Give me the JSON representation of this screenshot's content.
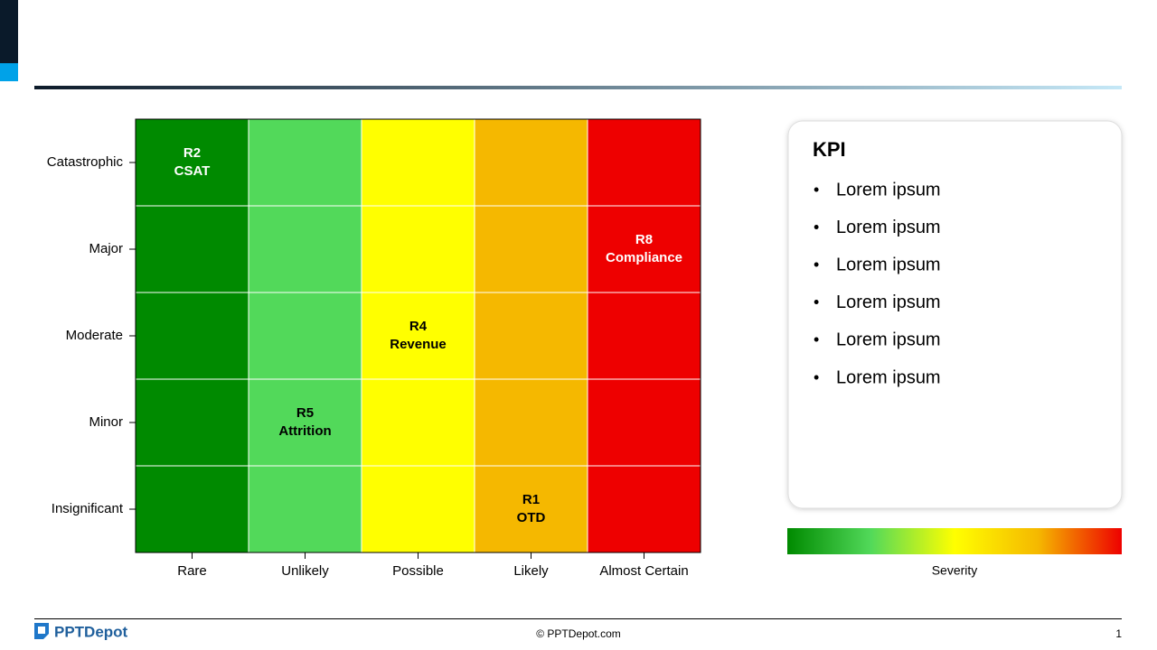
{
  "chart_data": {
    "type": "heatmap",
    "x_categories": [
      "Rare",
      "Unlikely",
      "Possible",
      "Likely",
      "Almost Certain"
    ],
    "y_categories": [
      "Catastrophic",
      "Major",
      "Moderate",
      "Minor",
      "Insignificant"
    ],
    "column_colors": [
      "#008a00",
      "#52d95a",
      "#ffff00",
      "#f5b800",
      "#ee0000"
    ],
    "label_colors": [
      "#ffffff",
      "#000000",
      "#000000",
      "#000000",
      "#ffffff"
    ],
    "risks": [
      {
        "id": "R2",
        "name": "CSAT",
        "x": "Rare",
        "y": "Catastrophic"
      },
      {
        "id": "R8",
        "name": "Compliance",
        "x": "Almost Certain",
        "y": "Major"
      },
      {
        "id": "R4",
        "name": "Revenue",
        "x": "Possible",
        "y": "Moderate"
      },
      {
        "id": "R5",
        "name": "Attrition",
        "x": "Unlikely",
        "y": "Minor"
      },
      {
        "id": "R1",
        "name": "OTD",
        "x": "Likely",
        "y": "Insignificant"
      }
    ],
    "colorbar": {
      "label": "Severity",
      "colors": [
        "#008a00",
        "#52d95a",
        "#ffff00",
        "#f5b800",
        "#ee0000"
      ]
    }
  },
  "kpi": {
    "title": "KPI",
    "items": [
      "Lorem ipsum",
      "Lorem ipsum",
      "Lorem ipsum",
      "Lorem ipsum",
      "Lorem ipsum",
      "Lorem ipsum"
    ]
  },
  "footer": {
    "logo": "PPTDepot",
    "copyright": "© PPTDepot.com",
    "page": "1"
  }
}
